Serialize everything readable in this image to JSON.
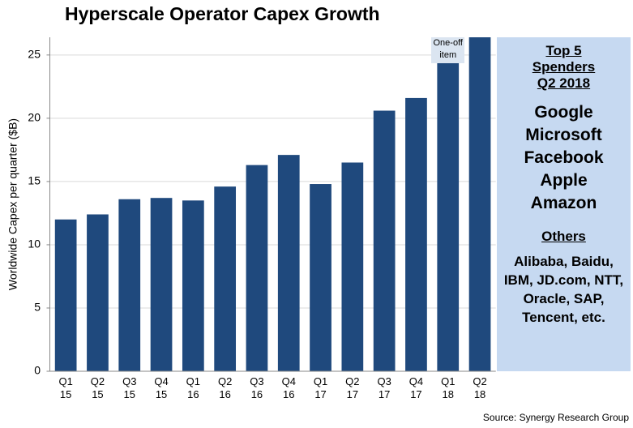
{
  "chart_data": {
    "type": "bar",
    "title": "Hyperscale Operator Capex Growth",
    "y_label": "Worldwide Capex per quarter ($B)",
    "categories": [
      "Q1 15",
      "Q2 15",
      "Q3 15",
      "Q4 15",
      "Q1 16",
      "Q2 16",
      "Q3 16",
      "Q4 16",
      "Q1 17",
      "Q2 17",
      "Q3 17",
      "Q4 17",
      "Q1 18",
      "Q2 18"
    ],
    "values": [
      12.0,
      12.4,
      13.6,
      13.7,
      13.5,
      14.6,
      16.3,
      17.1,
      14.8,
      16.5,
      20.6,
      21.6,
      26.4,
      26.4
    ],
    "color": "#1f497d",
    "ylim": [
      0,
      26.4
    ],
    "yticks": [
      0,
      5,
      10,
      15,
      20,
      25
    ],
    "grid": true,
    "annotation": {
      "text": "One-off item",
      "category": 12
    },
    "side_panel": {
      "heading": "Top 5 Spenders Q2 2018",
      "top5": [
        "Google",
        "Microsoft",
        "Facebook",
        "Apple",
        "Amazon"
      ],
      "others_heading": "Others",
      "others": "Alibaba, Baidu, IBM, JD.com, NTT, Oracle, SAP, Tencent, etc."
    },
    "source": "Source: Synergy Research Group"
  }
}
